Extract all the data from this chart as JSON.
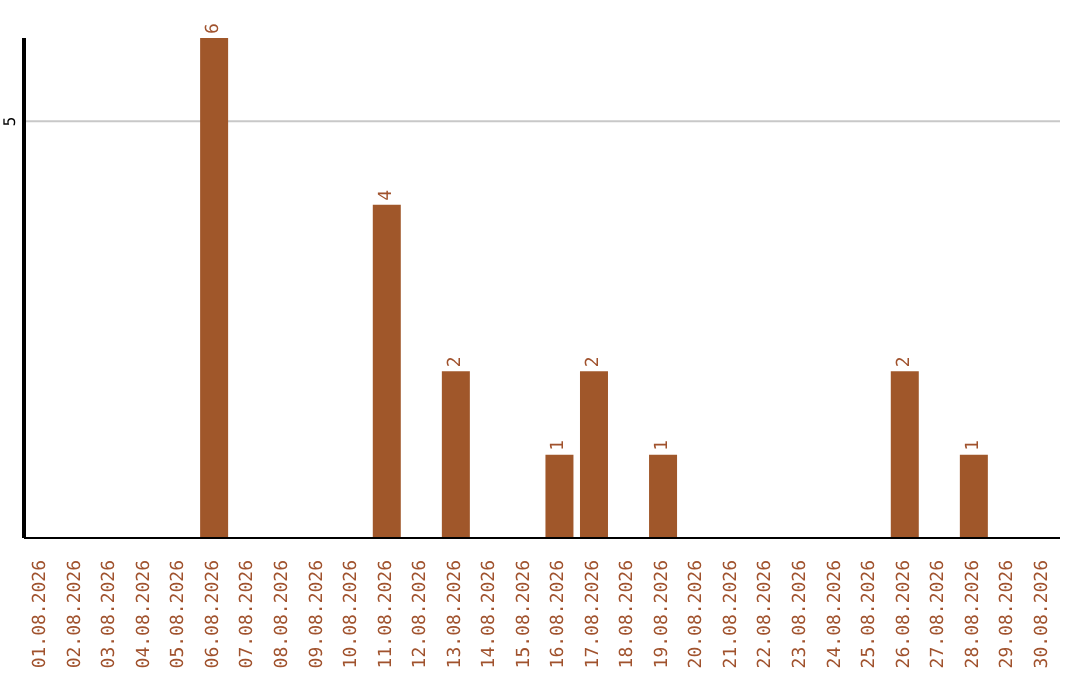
{
  "chart_data": {
    "type": "bar",
    "categories": [
      "01.08.2026",
      "02.08.2026",
      "03.08.2026",
      "04.08.2026",
      "05.08.2026",
      "06.08.2026",
      "07.08.2026",
      "08.08.2026",
      "09.08.2026",
      "10.08.2026",
      "11.08.2026",
      "12.08.2026",
      "13.08.2026",
      "14.08.2026",
      "15.08.2026",
      "16.08.2026",
      "17.08.2026",
      "18.08.2026",
      "19.08.2026",
      "20.08.2026",
      "21.08.2026",
      "22.08.2026",
      "23.08.2026",
      "24.08.2026",
      "25.08.2026",
      "26.08.2026",
      "27.08.2026",
      "28.08.2026",
      "29.08.2026",
      "30.08.2026"
    ],
    "values": [
      0,
      0,
      0,
      0,
      0,
      6,
      0,
      0,
      0,
      0,
      4,
      0,
      2,
      0,
      0,
      1,
      2,
      0,
      1,
      0,
      0,
      0,
      0,
      0,
      0,
      2,
      0,
      1,
      0,
      0
    ],
    "value_labels": [
      null,
      null,
      null,
      null,
      null,
      "6",
      null,
      null,
      null,
      null,
      "4",
      null,
      "2",
      null,
      null,
      "1",
      "2",
      null,
      "1",
      null,
      null,
      null,
      null,
      null,
      null,
      "2",
      null,
      "1",
      null,
      null
    ],
    "color": "#a0572a",
    "ylim": [
      0,
      6
    ],
    "yticks": [
      5
    ],
    "grid": "y"
  }
}
